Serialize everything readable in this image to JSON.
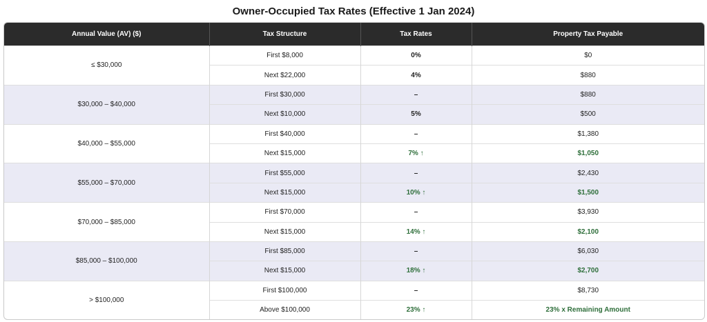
{
  "title": "Owner-Occupied Tax Rates (Effective 1 Jan 2024)",
  "headers": [
    "Annual Value (AV) ($)",
    "Tax Structure",
    "Tax Rates",
    "Property Tax Payable"
  ],
  "groups": [
    {
      "av": "≤ $30,000",
      "shaded": false,
      "rows": [
        {
          "structure": "First $8,000",
          "rate": "0%",
          "payable": "$0",
          "increase": false
        },
        {
          "structure": "Next $22,000",
          "rate": "4%",
          "payable": "$880",
          "increase": false
        }
      ]
    },
    {
      "av": "$30,000 – $40,000",
      "shaded": true,
      "rows": [
        {
          "structure": "First $30,000",
          "rate": "–",
          "payable": "$880",
          "increase": false
        },
        {
          "structure": "Next $10,000",
          "rate": "5%",
          "payable": "$500",
          "increase": false
        }
      ]
    },
    {
      "av": "$40,000 – $55,000",
      "shaded": false,
      "rows": [
        {
          "structure": "First $40,000",
          "rate": "–",
          "payable": "$1,380",
          "increase": false
        },
        {
          "structure": "Next $15,000",
          "rate": "7% ↑",
          "payable": "$1,050",
          "increase": true
        }
      ]
    },
    {
      "av": "$55,000 – $70,000",
      "shaded": true,
      "rows": [
        {
          "structure": "First $55,000",
          "rate": "–",
          "payable": "$2,430",
          "increase": false
        },
        {
          "structure": "Next $15,000",
          "rate": "10% ↑",
          "payable": "$1,500",
          "increase": true
        }
      ]
    },
    {
      "av": "$70,000 – $85,000",
      "shaded": false,
      "rows": [
        {
          "structure": "First $70,000",
          "rate": "–",
          "payable": "$3,930",
          "increase": false
        },
        {
          "structure": "Next $15,000",
          "rate": "14% ↑",
          "payable": "$2,100",
          "increase": true
        }
      ]
    },
    {
      "av": "$85,000 – $100,000",
      "shaded": true,
      "rows": [
        {
          "structure": "First $85,000",
          "rate": "–",
          "payable": "$6,030",
          "increase": false
        },
        {
          "structure": "Next $15,000",
          "rate": "18% ↑",
          "payable": "$2,700",
          "increase": true
        }
      ]
    },
    {
      "av": "> $100,000",
      "shaded": false,
      "rows": [
        {
          "structure": "First $100,000",
          "rate": "–",
          "payable": "$8,730",
          "increase": false
        },
        {
          "structure": "Above $100,000",
          "rate": "23% ↑",
          "payable": "23% x Remaining Amount",
          "increase": true
        }
      ]
    }
  ],
  "colors": {
    "header_bg": "#2b2b2b",
    "shaded_row": "#eaeaf5",
    "increase_text": "#2e6e3a"
  }
}
